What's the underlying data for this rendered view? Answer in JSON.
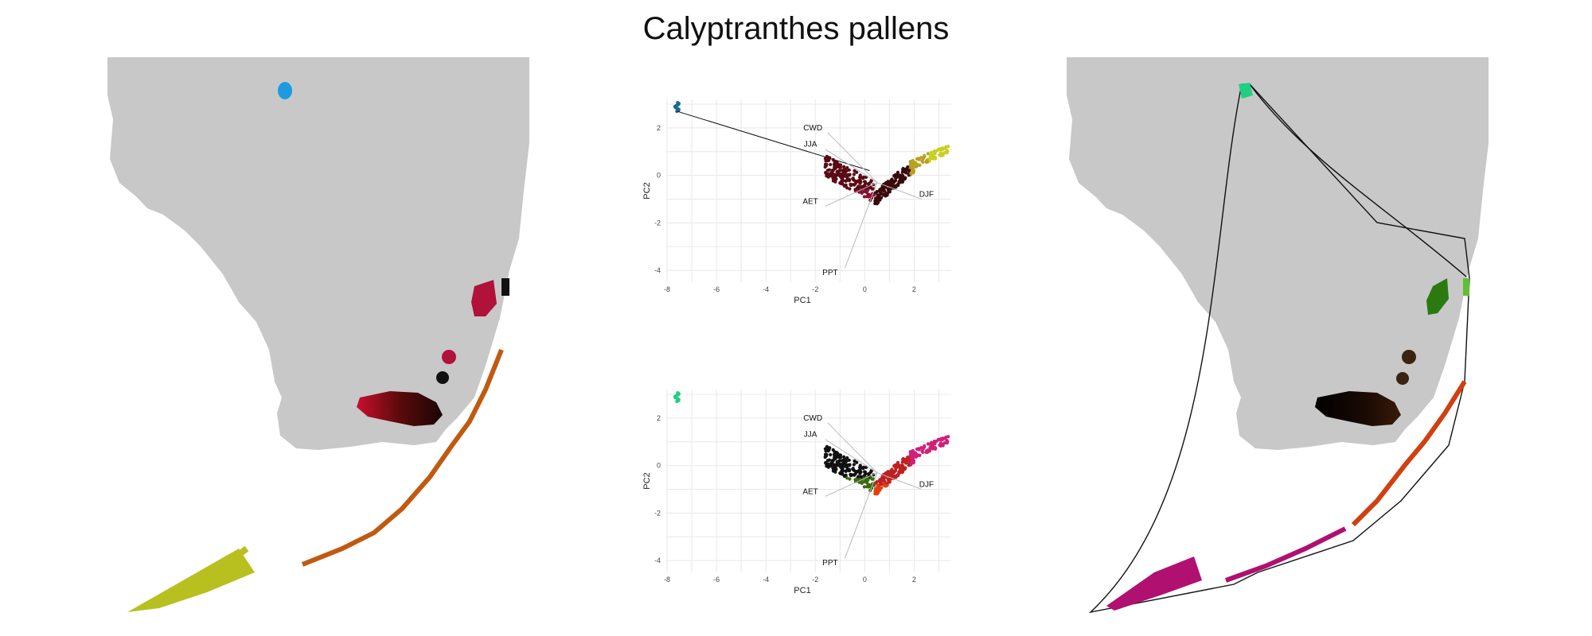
{
  "title": "Calyptranthes pallens",
  "colors": {
    "land": "#c8c8c8",
    "grid": "#e6e6e6",
    "background": "#ffffff"
  },
  "chart_data": [
    {
      "type": "map",
      "panel": "left",
      "description_colors": [
        "#1e9be0",
        "#b0123a",
        "#7a0b14",
        "#c05a10",
        "#b8c020"
      ]
    },
    {
      "type": "scatter",
      "panel": "center-top",
      "xlabel": "PC1",
      "ylabel": "PC2",
      "xlim": [
        -8,
        3.5
      ],
      "ylim": [
        -4.5,
        3.2
      ],
      "xticks": [
        -8,
        -6,
        -4,
        -2,
        0,
        2
      ],
      "yticks": [
        -4,
        -2,
        0,
        2
      ],
      "grid": true,
      "vectors": [
        {
          "label": "CWD",
          "x": 0.6,
          "y": 0.1,
          "lx": -2.1,
          "ly": 1.9
        },
        {
          "label": "JJA",
          "x": 0.4,
          "y": -0.1,
          "lx": -2.2,
          "ly": 1.2
        },
        {
          "label": "DJF",
          "x": 0.7,
          "y": -0.3,
          "lx": 2.5,
          "ly": -0.9
        },
        {
          "label": "AET",
          "x": -0.3,
          "y": -0.4,
          "lx": -2.2,
          "ly": -1.2
        },
        {
          "label": "PPT",
          "x": 0.2,
          "y": -0.8,
          "lx": -1.4,
          "ly": -4.2
        }
      ]
    },
    {
      "type": "scatter",
      "panel": "center-bottom",
      "xlabel": "PC1",
      "ylabel": "PC2",
      "xlim": [
        -8,
        3.5
      ],
      "ylim": [
        -4.5,
        3.2
      ],
      "xticks": [
        -8,
        -6,
        -4,
        -2,
        0,
        2
      ],
      "yticks": [
        -4,
        -2,
        0,
        2
      ],
      "grid": true,
      "vectors": [
        {
          "label": "CWD",
          "x": 0.6,
          "y": 0.1,
          "lx": -2.1,
          "ly": 1.9
        },
        {
          "label": "JJA",
          "x": 0.4,
          "y": -0.1,
          "lx": -2.2,
          "ly": 1.2
        },
        {
          "label": "DJF",
          "x": 0.7,
          "y": -0.3,
          "lx": 2.5,
          "ly": -0.9
        },
        {
          "label": "AET",
          "x": -0.3,
          "y": -0.4,
          "lx": -2.2,
          "ly": -1.2
        },
        {
          "label": "PPT",
          "x": 0.2,
          "y": -0.8,
          "lx": -1.4,
          "ly": -4.2
        }
      ]
    },
    {
      "type": "map",
      "panel": "right",
      "description_colors": [
        "#20d080",
        "#2a7a10",
        "#3a2410",
        "#d04010",
        "#b01070"
      ]
    }
  ]
}
